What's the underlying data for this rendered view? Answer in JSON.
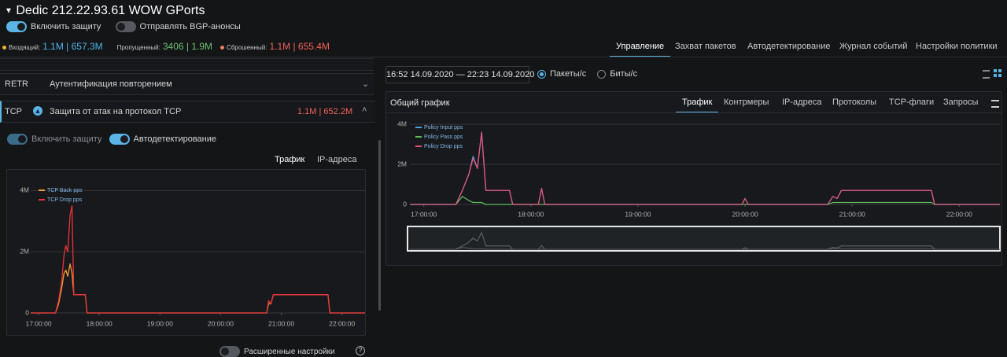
{
  "header": {
    "title": "Dedic 212.22.93.61 WOW GPorts",
    "toggles": [
      {
        "label": "Включить защиту",
        "on": true
      },
      {
        "label": "Отправлять BGP-анонсы",
        "on": false
      }
    ],
    "stats": [
      {
        "label": "Входящий:",
        "value": "1.1M | 657.3M",
        "color": "#4fb3e8",
        "dot": "#f0b030"
      },
      {
        "label": "Пропущенный:",
        "value": "3406 | 1.9M",
        "color": "#6cc070"
      },
      {
        "label": "Сброшенный:",
        "value": "1.1M | 655.4M",
        "color": "#f0605a",
        "dot": "#f08060"
      }
    ]
  },
  "tabs": {
    "items": [
      "Управление",
      "Захват пакетов",
      "Автодетектирование",
      "Журнал событий",
      "Настройки политики"
    ],
    "active": 0
  },
  "left": {
    "rows": [
      {
        "code": "RETR",
        "label": "Аутентификация повторением"
      },
      {
        "code": "TCP",
        "label": "Защита от атак на протокол TCP",
        "value": "1.1M | 652.2M"
      }
    ],
    "toggles": [
      {
        "label": "Включить защиту",
        "on": true,
        "disabled": true
      },
      {
        "label": "Автодетектирование",
        "on": true
      }
    ],
    "tabs": {
      "items": [
        "Трафик",
        "IP-адреса"
      ],
      "active": 0
    },
    "chart": {
      "type": "line",
      "x": [
        16.87,
        17.28,
        17.33,
        17.38,
        17.42,
        17.45,
        17.48,
        17.52,
        17.55,
        17.58,
        17.62,
        17.77,
        17.8,
        20.76,
        20.79,
        20.83,
        20.87,
        21.77,
        21.8,
        22.38
      ],
      "xlim": [
        16.87,
        22.38
      ],
      "xticks": [
        {
          "value": 17,
          "label": "17:00:00"
        },
        {
          "value": 18,
          "label": "18:00:00"
        },
        {
          "value": 19,
          "label": "19:00:00"
        },
        {
          "value": 20,
          "label": "20:00:00"
        },
        {
          "value": 21,
          "label": "21:00:00"
        },
        {
          "value": 22,
          "label": "22:00:00"
        }
      ],
      "ylim": [
        0,
        4600000
      ],
      "yticks": [
        0,
        {
          "value": 2000000,
          "label": "2M"
        },
        {
          "value": 4000000,
          "label": "4M"
        }
      ],
      "grid": true,
      "series": [
        {
          "name": "TCP Back pps",
          "color": "#f0a030",
          "values": [
            0,
            0,
            300000,
            800000,
            1300000,
            1400000,
            1200000,
            1600000,
            1300000,
            600000,
            600000,
            600000,
            0,
            0,
            300000,
            300000,
            600000,
            600000,
            0,
            0
          ]
        },
        {
          "name": "TCP Drop pps",
          "color": "#e8323c",
          "values": [
            0,
            0,
            400000,
            1000000,
            1900000,
            2200000,
            2000000,
            3200000,
            3500000,
            600000,
            600000,
            600000,
            0,
            0,
            400000,
            300000,
            600000,
            600000,
            0,
            0
          ]
        }
      ]
    },
    "footer_toggle": {
      "label": "Расширенные настройки",
      "on": false
    }
  },
  "right": {
    "date_range": "16:52 14.09.2020 — 22:23 14.09.2020",
    "units": {
      "items": [
        "Пакеты/с",
        "Биты/с"
      ],
      "selected": 0
    },
    "card_title": "Общий график",
    "tabs": {
      "items": [
        "Трафик",
        "Контрмеры",
        "IP-адреса",
        "Протоколы",
        "TCP-флаги",
        "Запросы"
      ],
      "active": 0
    },
    "chart": {
      "type": "line",
      "x": [
        16.87,
        17.3,
        17.36,
        17.42,
        17.46,
        17.5,
        17.54,
        17.58,
        17.8,
        17.83,
        18.07,
        18.1,
        18.13,
        19.97,
        20.0,
        20.03,
        20.77,
        20.82,
        20.86,
        20.9,
        21.74,
        21.77,
        22.38
      ],
      "xlim": [
        16.87,
        22.38
      ],
      "xticks": [
        {
          "value": 17,
          "label": "17:00:00"
        },
        {
          "value": 18,
          "label": "18:00:00"
        },
        {
          "value": 19,
          "label": "19:00:00"
        },
        {
          "value": 20,
          "label": "20:00:00"
        },
        {
          "value": 21,
          "label": "21:00:00"
        },
        {
          "value": 22,
          "label": "22:00:00"
        }
      ],
      "ylim": [
        0,
        4200000
      ],
      "yticks": [
        0,
        {
          "value": 2000000,
          "label": "2M"
        },
        {
          "value": 4000000,
          "label": "4M"
        }
      ],
      "grid": true,
      "navigator": true,
      "series": [
        {
          "name": "Policy Input pps",
          "color": "#4aa3df",
          "values": [
            0,
            0,
            700000,
            1500000,
            2400000,
            1800000,
            3600000,
            700000,
            700000,
            0,
            0,
            800000,
            0,
            0,
            300000,
            0,
            0,
            400000,
            300000,
            700000,
            700000,
            0,
            0
          ]
        },
        {
          "name": "Policy Pass pps",
          "color": "#5cb85c",
          "values": [
            0,
            0,
            400000,
            200000,
            100000,
            100000,
            100000,
            0,
            0,
            0,
            0,
            0,
            0,
            0,
            0,
            0,
            0,
            100000,
            100000,
            100000,
            100000,
            0,
            0
          ]
        },
        {
          "name": "Policy Drop pps",
          "color": "#e0507a",
          "values": [
            0,
            0,
            700000,
            1500000,
            2300000,
            1800000,
            3600000,
            700000,
            700000,
            0,
            0,
            800000,
            0,
            0,
            300000,
            0,
            0,
            400000,
            300000,
            700000,
            700000,
            0,
            0
          ]
        }
      ]
    }
  }
}
